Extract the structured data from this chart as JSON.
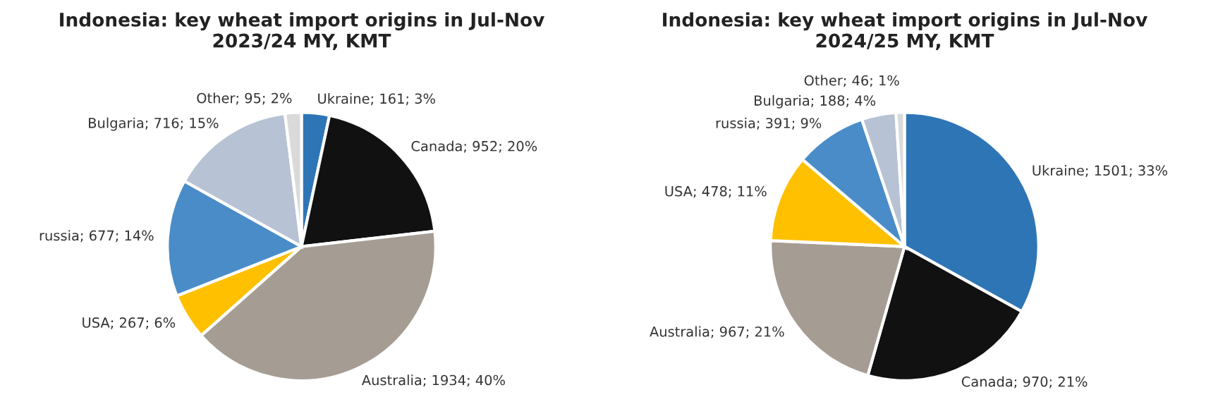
{
  "chart_data": [
    {
      "type": "pie",
      "title": "Indonesia: key wheat import origins in Jul-Nov\n2023/24 MY, KMT",
      "categories": [
        "Ukraine",
        "Canada",
        "Australia",
        "USA",
        "russia",
        "Bulgaria",
        "Other"
      ],
      "values": [
        161,
        952,
        1934,
        267,
        677,
        716,
        95
      ],
      "value_labels": [
        "161; 3%",
        "952; 20%",
        "1934; 40%",
        "267; 6%",
        "677; 14%",
        "716; 15%",
        "95; 2%"
      ],
      "colors": [
        "#2e75b6",
        "#111111",
        "#a59d94",
        "#ffc000",
        "#4a8cc7",
        "#b7c2d4",
        "#dadada"
      ]
    },
    {
      "type": "pie",
      "title": "Indonesia: key wheat import origins in Jul-Nov\n2024/25 MY, KMT",
      "categories": [
        "Ukraine",
        "Canada",
        "Australia",
        "USA",
        "russia",
        "Bulgaria",
        "Other"
      ],
      "values": [
        1501,
        970,
        967,
        478,
        391,
        188,
        46
      ],
      "value_labels": [
        "1501; 33%",
        "970; 21%",
        "967; 21%",
        "478; 11%",
        "391; 9%",
        "188; 4%",
        "46; 1%"
      ],
      "colors": [
        "#2e75b6",
        "#111111",
        "#a59d94",
        "#ffc000",
        "#4a8cc7",
        "#b7c2d4",
        "#dadada"
      ]
    }
  ]
}
